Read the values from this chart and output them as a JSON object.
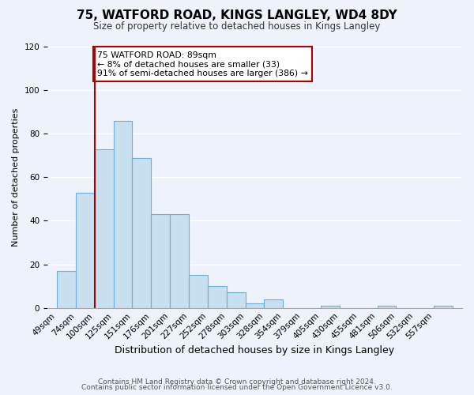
{
  "title": "75, WATFORD ROAD, KINGS LANGLEY, WD4 8DY",
  "subtitle": "Size of property relative to detached houses in Kings Langley",
  "xlabel": "Distribution of detached houses by size in Kings Langley",
  "ylabel": "Number of detached properties",
  "footer1": "Contains HM Land Registry data © Crown copyright and database right 2024.",
  "footer2": "Contains public sector information licensed under the Open Government Licence v3.0.",
  "bin_labels": [
    "49sqm",
    "74sqm",
    "100sqm",
    "125sqm",
    "151sqm",
    "176sqm",
    "201sqm",
    "227sqm",
    "252sqm",
    "278sqm",
    "303sqm",
    "328sqm",
    "354sqm",
    "379sqm",
    "405sqm",
    "430sqm",
    "455sqm",
    "481sqm",
    "506sqm",
    "532sqm",
    "557sqm"
  ],
  "bar_heights": [
    17,
    53,
    73,
    86,
    69,
    43,
    43,
    15,
    10,
    7,
    2,
    4,
    0,
    0,
    1,
    0,
    0,
    1,
    0,
    0,
    1
  ],
  "bar_color": "#c8dff0",
  "bar_edge_color": "#6baed6",
  "property_line_color": "#aa0000",
  "ylim": [
    0,
    120
  ],
  "yticks": [
    0,
    20,
    40,
    60,
    80,
    100,
    120
  ],
  "annotation_text": "75 WATFORD ROAD: 89sqm\n← 8% of detached houses are smaller (33)\n91% of semi-detached houses are larger (386) →",
  "annotation_box_color": "#ffffff",
  "annotation_box_edge": "#aa0000",
  "background_color": "#eef2fb",
  "grid_color": "#ffffff",
  "title_fontsize": 11,
  "subtitle_fontsize": 8.5,
  "ylabel_fontsize": 8,
  "xlabel_fontsize": 9,
  "tick_fontsize": 7.5,
  "footer_fontsize": 6.5
}
